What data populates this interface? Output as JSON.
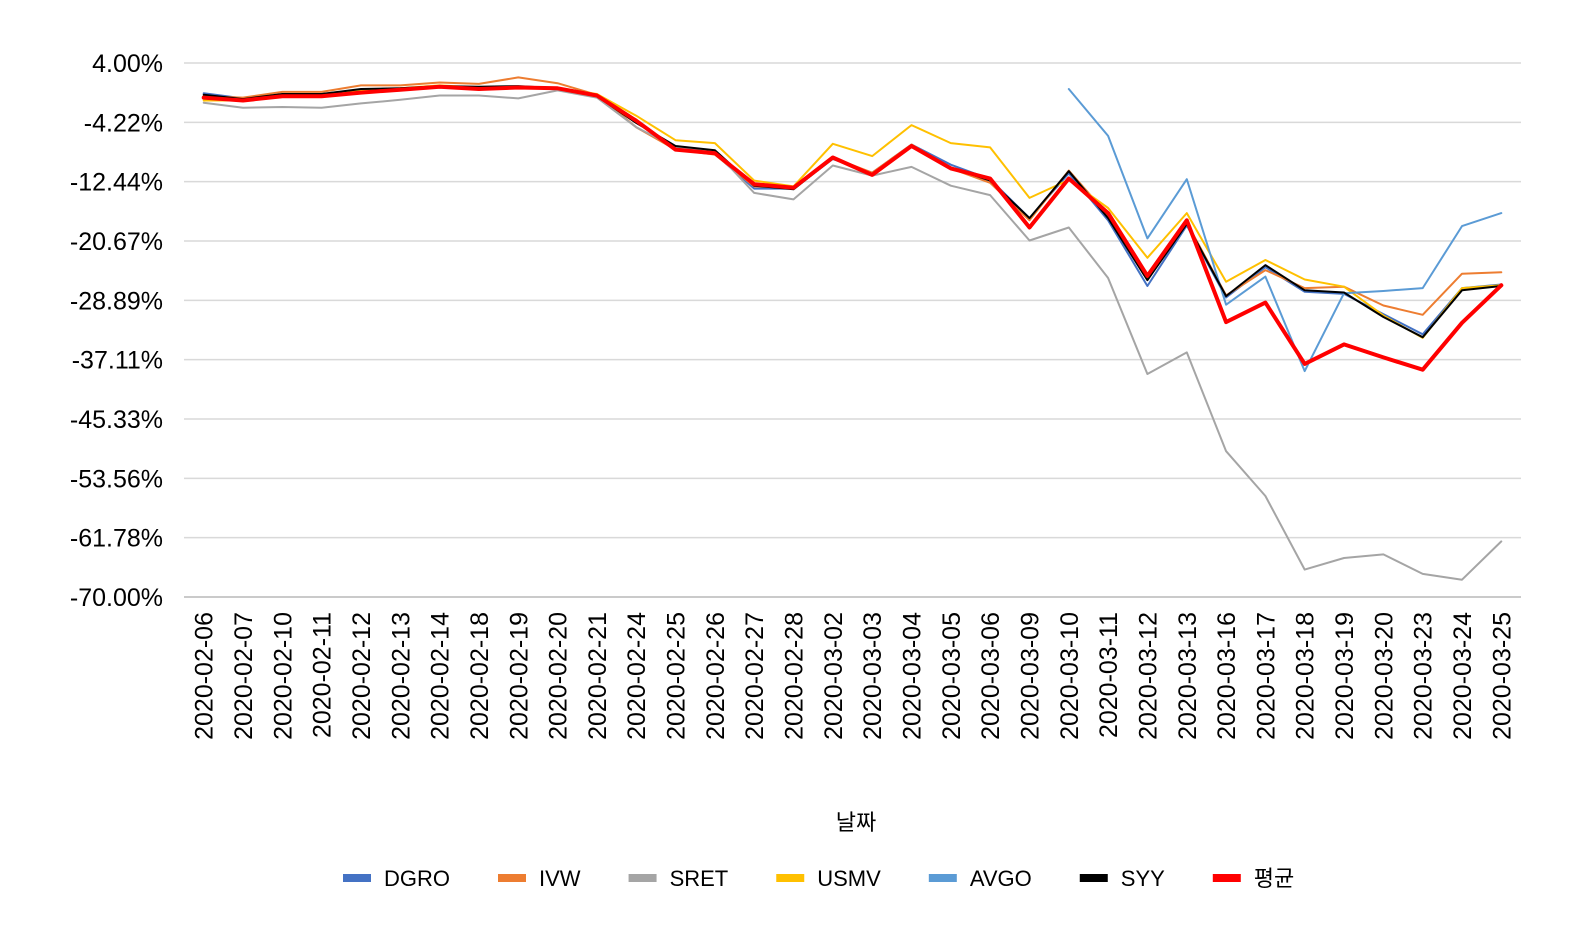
{
  "chart_data": {
    "type": "line",
    "title": "",
    "xlabel": "날짜",
    "ylabel": "",
    "grid": true,
    "legend_position": "bottom",
    "ylim": [
      -70.0,
      4.0
    ],
    "y_ticks": [
      "4.00%",
      "-4.22%",
      "-12.44%",
      "-20.67%",
      "-28.89%",
      "-37.11%",
      "-45.33%",
      "-53.56%",
      "-61.78%",
      "-70.00%"
    ],
    "categories": [
      "2020-02-06",
      "2020-02-07",
      "2020-02-10",
      "2020-02-11",
      "2020-02-12",
      "2020-02-13",
      "2020-02-14",
      "2020-02-18",
      "2020-02-19",
      "2020-02-20",
      "2020-02-21",
      "2020-02-24",
      "2020-02-25",
      "2020-02-26",
      "2020-02-27",
      "2020-02-28",
      "2020-03-02",
      "2020-03-03",
      "2020-03-04",
      "2020-03-05",
      "2020-03-06",
      "2020-03-09",
      "2020-03-10",
      "2020-03-11",
      "2020-03-12",
      "2020-03-13",
      "2020-03-16",
      "2020-03-17",
      "2020-03-18",
      "2020-03-19",
      "2020-03-20",
      "2020-03-23",
      "2020-03-24",
      "2020-03-25"
    ],
    "series": [
      {
        "name": "DGRO",
        "color": "#4472C4",
        "width": 2,
        "values": [
          -0.2,
          -0.9,
          -0.4,
          -0.3,
          0.3,
          0.5,
          0.8,
          0.6,
          0.7,
          0.4,
          -0.6,
          -4.0,
          -7.8,
          -8.6,
          -13.4,
          -13.4,
          -9.3,
          -11.2,
          -7.3,
          -10.1,
          -12.1,
          -17.5,
          -11.3,
          -17.8,
          -26.9,
          -18.5,
          -28.5,
          -24.3,
          -27.7,
          -28.0,
          -30.8,
          -33.6,
          -27.2,
          -26.7
        ]
      },
      {
        "name": "IVW",
        "color": "#ED7D31",
        "width": 2,
        "values": [
          -0.6,
          -0.8,
          0.0,
          0.0,
          0.9,
          0.9,
          1.3,
          1.1,
          2.0,
          1.2,
          -0.4,
          -4.9,
          -8.0,
          -8.7,
          -13.1,
          -13.3,
          -9.1,
          -11.2,
          -7.3,
          -10.6,
          -12.6,
          -17.8,
          -10.9,
          -17.1,
          -26.0,
          -18.1,
          -28.2,
          -24.7,
          -27.2,
          -27.0,
          -29.6,
          -30.9,
          -25.2,
          -25.0
        ]
      },
      {
        "name": "SRET",
        "color": "#A5A5A5",
        "width": 2,
        "values": [
          -1.5,
          -2.2,
          -2.1,
          -2.2,
          -1.6,
          -1.1,
          -0.5,
          -0.5,
          -0.9,
          0.2,
          -0.8,
          -4.9,
          -7.7,
          -8.2,
          -14.0,
          -14.9,
          -10.2,
          -11.6,
          -10.4,
          -13.0,
          -14.3,
          -20.6,
          -18.8,
          -25.8,
          -39.1,
          -36.1,
          -49.8,
          -56.0,
          -66.2,
          -64.6,
          -64.1,
          -66.8,
          -67.6,
          -62.3
        ]
      },
      {
        "name": "USMV",
        "color": "#FFC000",
        "width": 2,
        "values": [
          -1.2,
          -1.2,
          -0.6,
          -0.6,
          0.2,
          0.5,
          0.9,
          0.6,
          0.7,
          0.5,
          -0.3,
          -3.3,
          -6.7,
          -7.1,
          -12.3,
          -13.1,
          -7.2,
          -8.9,
          -4.6,
          -7.1,
          -7.7,
          -14.7,
          -12.2,
          -16.1,
          -23.0,
          -16.8,
          -26.3,
          -23.3,
          -26.0,
          -27.0,
          -31.0,
          -34.1,
          -27.2,
          -26.8
        ]
      },
      {
        "name": "AVGO",
        "color": "#5B9BD5",
        "width": 2,
        "values": [
          null,
          null,
          null,
          null,
          null,
          null,
          null,
          null,
          null,
          null,
          null,
          null,
          null,
          null,
          null,
          null,
          null,
          null,
          null,
          null,
          null,
          null,
          0.4,
          -6.1,
          -20.3,
          -12.1,
          -29.5,
          -25.6,
          -38.7,
          -27.9,
          -27.6,
          -27.2,
          -18.6,
          -16.8
        ]
      },
      {
        "name": "SYY",
        "color": "#000000",
        "width": 2,
        "values": [
          -0.4,
          -1.0,
          -0.3,
          -0.3,
          0.4,
          0.5,
          0.8,
          0.7,
          0.8,
          0.5,
          -0.6,
          -4.3,
          -7.5,
          -8.1,
          -13.0,
          -13.5,
          -9.2,
          -11.5,
          -7.4,
          -10.5,
          -12.3,
          -17.5,
          -11.0,
          -17.5,
          -26.1,
          -18.3,
          -28.3,
          -24.0,
          -27.5,
          -27.8,
          -31.2,
          -34.0,
          -27.5,
          -26.9
        ]
      },
      {
        "name": "평균",
        "color": "#FF0000",
        "width": 4,
        "values": [
          -0.8,
          -1.2,
          -0.6,
          -0.6,
          -0.1,
          0.3,
          0.7,
          0.4,
          0.6,
          0.5,
          -0.5,
          -4.0,
          -8.0,
          -8.5,
          -12.8,
          -13.3,
          -9.1,
          -11.5,
          -7.5,
          -10.6,
          -12.0,
          -18.8,
          -12.0,
          -16.8,
          -25.5,
          -17.8,
          -31.9,
          -29.2,
          -37.7,
          -35.0,
          -36.8,
          -38.5,
          -32.0,
          -26.8
        ]
      }
    ]
  }
}
